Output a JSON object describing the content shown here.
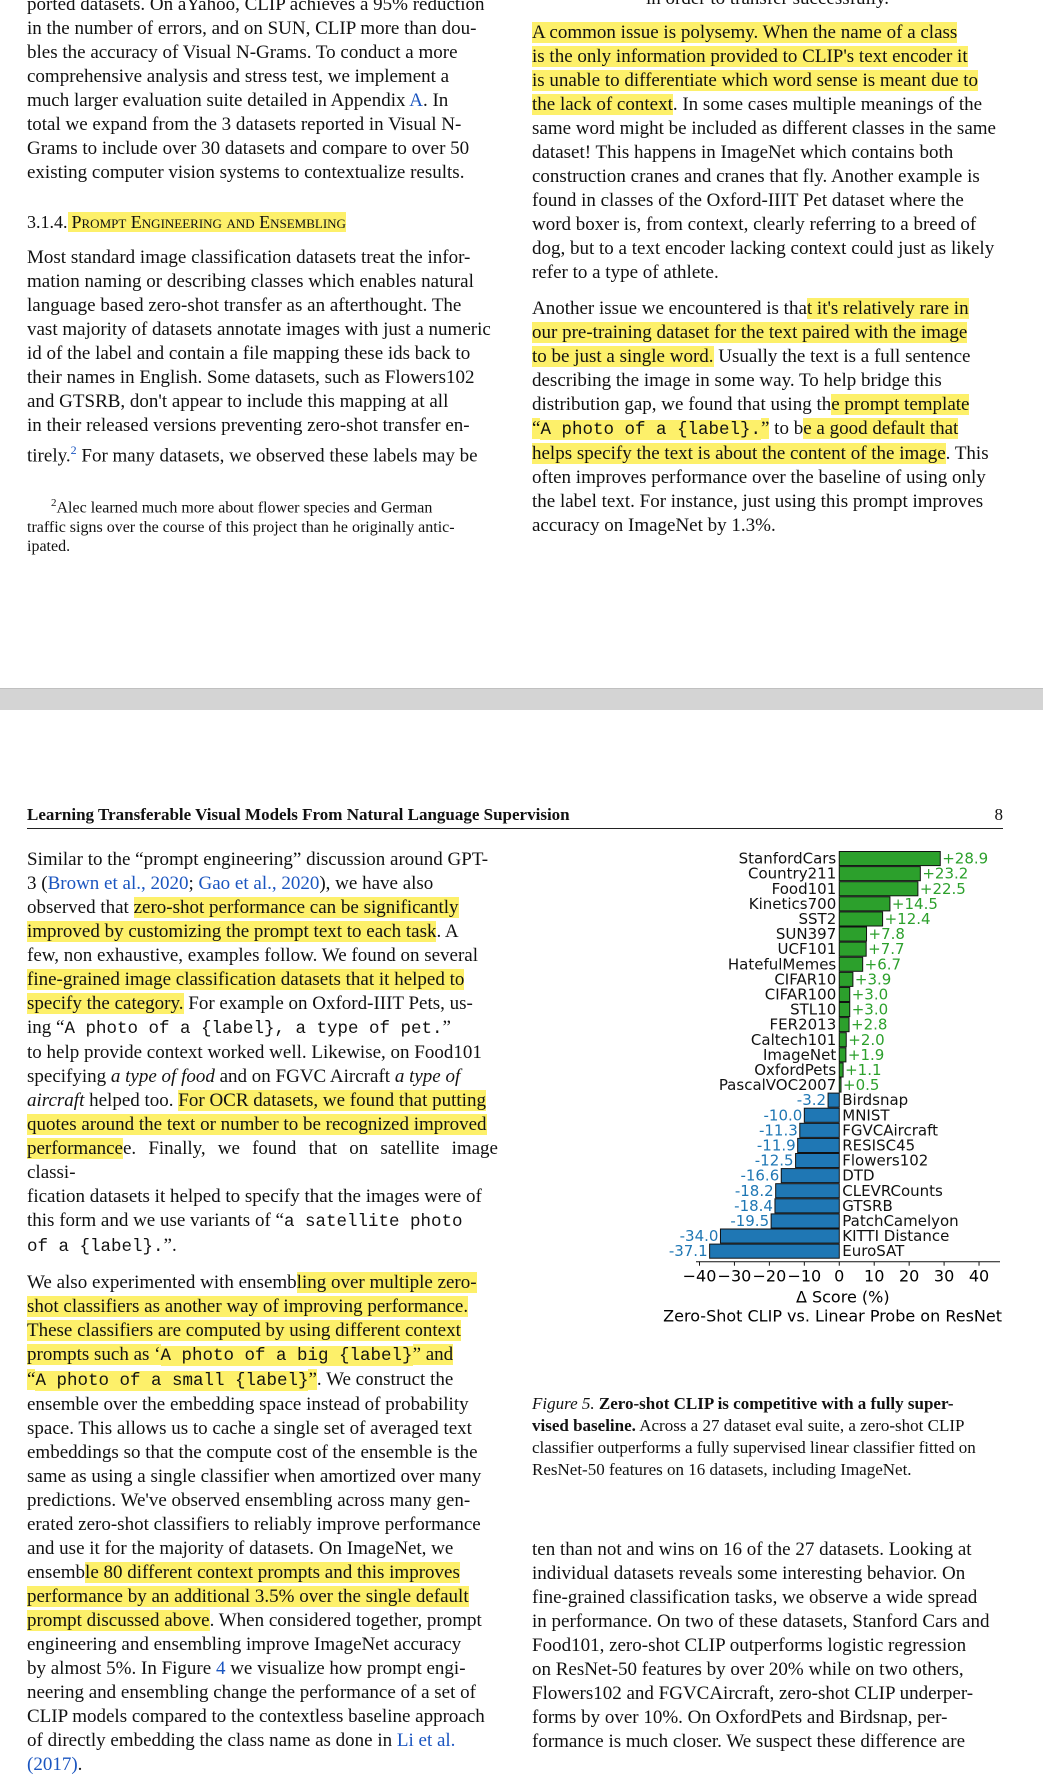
{
  "top_page": {
    "left_col": {
      "para1_lines": [
        "ported datasets. On aYahoo, CLIP achieves a 95% reduction",
        "in the number of errors, and on SUN, CLIP more than dou-",
        "bles the accuracy of Visual N-Grams. To conduct a more",
        "comprehensive analysis and stress test, we implement a",
        "much larger evaluation suite detailed in Appendix ",
        "A",
        ". In",
        "total we expand from the 3 datasets reported in Visual N-",
        "Grams to include over 30 datasets and compare to over 50",
        "existing computer vision systems to contextualize results."
      ],
      "section_number": "3.1.4.",
      "section_title": "Prompt Engineering and Ensembling",
      "para2_lines": [
        "Most standard image classification datasets treat the infor-",
        "mation naming or describing classes which enables natural",
        "language based zero-shot transfer as an afterthought. The",
        "vast majority of datasets annotate images with just a numeric",
        "id of the label and contain a file mapping these ids back to",
        "their names in English. Some datasets, such as Flowers102",
        "and GTSRB, don't appear to include this mapping at all",
        "in their released versions preventing zero-shot transfer en-",
        "tirely.",
        "2",
        " For many datasets, we observed these labels may be"
      ],
      "footnote_marker": "2",
      "footnote_lines": [
        "Alec learned much more about flower species and German",
        "traffic signs over the course of this project than he originally antic-",
        "ipated."
      ]
    },
    "right_col": {
      "cut_line": "in order to transfer successfully.",
      "para1": {
        "hl_lines": [
          "A common issue is polysemy. When the name of a class",
          "is the only information provided to CLIP's text encoder it",
          "is unable to differentiate which word sense is meant due to",
          "the lack of context"
        ],
        "rest_first": ". In some cases multiple meanings of the",
        "rest_lines": [
          "same word might be included as different classes in the same",
          "dataset! This happens in ImageNet which contains both",
          "construction cranes and cranes that fly. Another example is",
          "found in classes of the Oxford-IIIT Pet dataset where the",
          "word boxer is, from context, clearly referring to a breed of",
          "dog, but to a text encoder lacking context could just as likely",
          "refer to a type of athlete."
        ]
      },
      "para2": {
        "l1_a": "Another issue we encountered is tha",
        "l1_hl": "t it's relatively rare in",
        "l2_hl": "our pre-training dataset for the text paired with the image",
        "l3_hl": "to be just a single word.",
        "l3_b": " Usually the text is a full sentence",
        "l4": "describing the image in some way. To help bridge this",
        "l5_a": "distribution gap, we found that using th",
        "l5_hl": "e prompt template",
        "l6_hl_open": "“",
        "l6_mono": "A photo of a {label}.",
        "l6_hl_close": "”",
        "l6_b": " to b",
        "l6_hl2": "e a good default that",
        "l7_hl": "helps specify the text is about the content of the image",
        "l7_b": ". This",
        "rest_lines": [
          "often improves performance over the baseline of using only",
          "the label text. For instance, just using this prompt improves",
          "accuracy on ImageNet by 1.3%."
        ]
      }
    }
  },
  "bottom_page": {
    "running_head": "Learning Transferable Visual Models From Natural Language Supervision",
    "page_number": "8",
    "left_col": {
      "p1_l1": "Similar to the “prompt engineering” discussion around GPT-",
      "p1_l2_a": "3 (",
      "p1_l2_link1": "Brown et al., 2020",
      "p1_l2_sep": "; ",
      "p1_l2_link2": "Gao et al., 2020",
      "p1_l2_b": "), we have also",
      "p1_l3_a": "observed that ",
      "p1_l3_hl": "zero-shot performance can be significantly",
      "p1_l4_hl": "improved by customizing the prompt text to each task",
      "p1_l4_b": ". A",
      "p1_l5": "few, non exhaustive, examples follow. We found on several",
      "p1_l6_hl": "fine-grained image classification datasets that it helped to",
      "p1_l7_hl": "specify the category.",
      "p1_l7_b": " For example on Oxford-IIIT Pets, us-",
      "p1_l8_a": "ing “",
      "p1_l8_mono": "A photo of a {label}, a type of pet.",
      "p1_l8_b": "”",
      "p1_l9": "to help provide context worked well. Likewise, on Food101",
      "p1_l10_a": "specifying ",
      "p1_l10_it": "a type of food",
      "p1_l10_b": " and on FGVC Aircraft ",
      "p1_l10_it2": "a type of",
      "p1_l11_it": "aircraft",
      "p1_l11_b": " helped too. ",
      "p1_l11_hl": "For OCR datasets, we found that putting",
      "p1_l12_hl": "quotes around the text or number to be recognized improved",
      "p1_l13_hl": "performance",
      "p1_l13_b": "e. Finally, we found that on satellite image classi-",
      "p1_l14": "fication datasets it helped to specify that the images were of",
      "p1_l15_a": "this form and we use variants of “",
      "p1_l15_mono": "a satellite photo",
      "p1_l16_mono": "of a {label}.",
      "p1_l16_b": "”.",
      "p2_l1_a": "We also experimented with ensemb",
      "p2_l1_hl": "ling over multiple zero-",
      "p2_l2_hl": "shot classifiers as another way of improving performance.",
      "p2_l3_hl": "These classifiers are computed by using different context",
      "p2_l4_hl": "prompts such as ‘",
      "p2_l4_mono": "A photo of a big {label}",
      "p2_l4_hl2": "” and",
      "p2_l5_hl": "“",
      "p2_l5_mono": "A photo of a small {label}",
      "p2_l5_hl2": "”",
      "p2_l5_b": ". We construct the",
      "p2_rest": [
        "ensemble over the embedding space instead of probability",
        "space. This allows us to cache a single set of averaged text",
        "embeddings so that the compute cost of the ensemble is the",
        "same as using a single classifier when amortized over many",
        "predictions. We've observed ensembling across many gen-",
        "erated zero-shot classifiers to reliably improve performance",
        "and use it for the majority of datasets. On ImageNet, we"
      ],
      "p2_l13_a": "ensemb",
      "p2_l13_hl": "le 80 different context prompts and this improves",
      "p2_l14_hl": "performance by an additional 3.5% over the single default",
      "p2_l15_hl": "prompt discussed above",
      "p2_l15_b": ". When considered together, prompt",
      "p2_l16": "engineering and ensembling improve ImageNet accuracy",
      "p2_l17_a": "by almost 5%. In Figure ",
      "p2_l17_link": "4",
      "p2_l17_b": " we visualize how prompt engi-",
      "p2_l18": "neering and ensembling change the performance of a set of",
      "p2_l19": "CLIP models compared to the contextless baseline approach",
      "p2_l20_a": "of directly embedding the class name as done in ",
      "p2_l20_link": "Li et al.",
      "p2_l21_link": "(2017)",
      "p2_l21_b": "."
    },
    "caption": {
      "label": "Figure 5.",
      "bold": "Zero-shot CLIP is competitive with a fully super-",
      "bold2": "vised baseline.",
      "rest_first": " Across a 27 dataset eval suite, a zero-shot CLIP",
      "rest_lines": [
        "classifier outperforms a fully supervised linear classifier fitted on",
        "ResNet-50 features on 16 datasets, including ImageNet."
      ]
    },
    "right_col_lines": [
      "ten than not and wins on 16 of the 27 datasets. Looking at",
      "individual datasets reveals some interesting behavior. On",
      "fine-grained classification tasks, we observe a wide spread",
      "in performance. On two of these datasets, Stanford Cars and",
      "Food101, zero-shot CLIP outperforms logistic regression",
      "on ResNet-50 features by over 20% while on two others,",
      "Flowers102 and FGVCAircraft, zero-shot CLIP underper-",
      "forms by over 10%. On OxfordPets and Birdsnap, per-",
      "formance is much closer. We suspect these difference are"
    ]
  },
  "chart_data": {
    "type": "bar",
    "orientation": "horizontal",
    "xlabel": "Δ Score (%)",
    "title": "Zero-Shot CLIP vs. Linear Probe on ResNet50",
    "xlim": [
      -41,
      46
    ],
    "xticks": [
      -40,
      -30,
      -20,
      -10,
      0,
      10,
      20,
      30,
      40
    ],
    "xtick_labels": [
      "−40",
      "−30",
      "−20",
      "−10",
      "0",
      "10",
      "20",
      "30",
      "40"
    ],
    "positive_color": "#2ca02c",
    "negative_color": "#1f77b4",
    "categories": [
      "StanfordCars",
      "Country211",
      "Food101",
      "Kinetics700",
      "SST2",
      "SUN397",
      "UCF101",
      "HatefulMemes",
      "CIFAR10",
      "CIFAR100",
      "STL10",
      "FER2013",
      "Caltech101",
      "ImageNet",
      "OxfordPets",
      "PascalVOC2007",
      "Birdsnap",
      "MNIST",
      "FGVCAircraft",
      "RESISC45",
      "Flowers102",
      "DTD",
      "CLEVRCounts",
      "GTSRB",
      "PatchCamelyon",
      "KITTI Distance",
      "EuroSAT"
    ],
    "values": [
      28.9,
      23.2,
      22.5,
      14.5,
      12.4,
      7.8,
      7.7,
      6.7,
      3.9,
      3.0,
      3.0,
      2.8,
      2.0,
      1.9,
      1.1,
      0.5,
      -3.2,
      -10.0,
      -11.3,
      -11.9,
      -12.5,
      -16.6,
      -18.2,
      -18.4,
      -19.5,
      -34.0,
      -37.1
    ],
    "value_labels": [
      "+28.9",
      "+23.2",
      "+22.5",
      "+14.5",
      "+12.4",
      "+7.8",
      "+7.7",
      "+6.7",
      "+3.9",
      "+3.0",
      "+3.0",
      "+2.8",
      "+2.0",
      "+1.9",
      "+1.1",
      "+0.5",
      "-3.2",
      "-10.0",
      "-11.3",
      "-11.9",
      "-12.5",
      "-16.6",
      "-18.2",
      "-18.4",
      "-19.5",
      "-34.0",
      "-37.1"
    ]
  }
}
